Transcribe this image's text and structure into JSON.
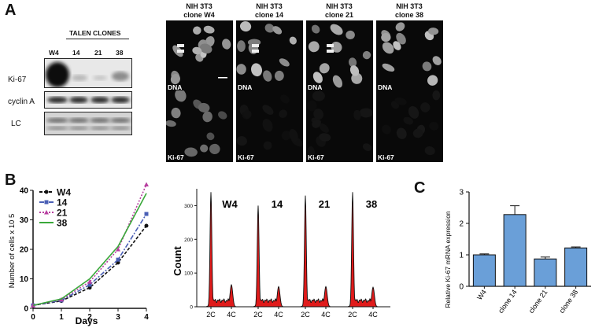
{
  "panels": {
    "a": "A",
    "b": "B",
    "c": "C"
  },
  "blot": {
    "header": "TALEN CLONES",
    "lanes": [
      "W4",
      "14",
      "21",
      "38"
    ],
    "rows": [
      "Ki-67",
      "cyclin A",
      "LC"
    ]
  },
  "microscopy": {
    "columns": [
      "NIH 3T3\nclone W4",
      "NIH 3T3\nclone 14",
      "NIH 3T3\nclone 21",
      "NIH 3T3\nclone 38"
    ],
    "row_tags": [
      "DNA",
      "Ki-67"
    ]
  },
  "chart_data": [
    {
      "type": "line",
      "ylabel": "Number of cells x 10 5",
      "xlabel": "Days",
      "x": [
        0,
        1,
        2,
        3,
        4
      ],
      "xlim": [
        0,
        4
      ],
      "ylim": [
        0,
        40
      ],
      "yticks": [
        0,
        10,
        20,
        30,
        40
      ],
      "series": [
        {
          "name": "W4",
          "values": [
            1,
            2.5,
            7,
            15.5,
            28
          ],
          "color": "#111111"
        },
        {
          "name": "14",
          "values": [
            1,
            2.7,
            8,
            16.5,
            32
          ],
          "color": "#4a5fb5"
        },
        {
          "name": "21",
          "values": [
            1,
            3.0,
            9,
            20,
            42
          ],
          "color": "#b83fa0"
        },
        {
          "name": "38",
          "values": [
            1,
            3.2,
            10,
            21,
            39
          ],
          "color": "#3aa83a"
        }
      ]
    },
    {
      "type": "area",
      "ylabel": "Count",
      "yticks": [
        0,
        100,
        200,
        300
      ],
      "ylim": [
        0,
        350
      ],
      "xticklabels": [
        "2C",
        "4C"
      ],
      "fill_color": "#e01b1b",
      "series": [
        {
          "name": "W4",
          "peak": 340,
          "peak2": 65
        },
        {
          "name": "14",
          "peak": 300,
          "peak2": 60
        },
        {
          "name": "21",
          "peak": 330,
          "peak2": 60
        },
        {
          "name": "38",
          "peak": 340,
          "peak2": 58
        }
      ]
    },
    {
      "type": "bar",
      "ylabel": "Relative Ki-67 mRNA expression",
      "categories": [
        "W4",
        "clone 14",
        "clone 21",
        "clone 38"
      ],
      "values": [
        1.0,
        2.28,
        0.87,
        1.22
      ],
      "errors": [
        0.03,
        0.28,
        0.06,
        0.03
      ],
      "ylim": [
        0,
        3
      ],
      "yticks": [
        0,
        1,
        2,
        3
      ],
      "bar_color": "#6a9fd8"
    }
  ]
}
